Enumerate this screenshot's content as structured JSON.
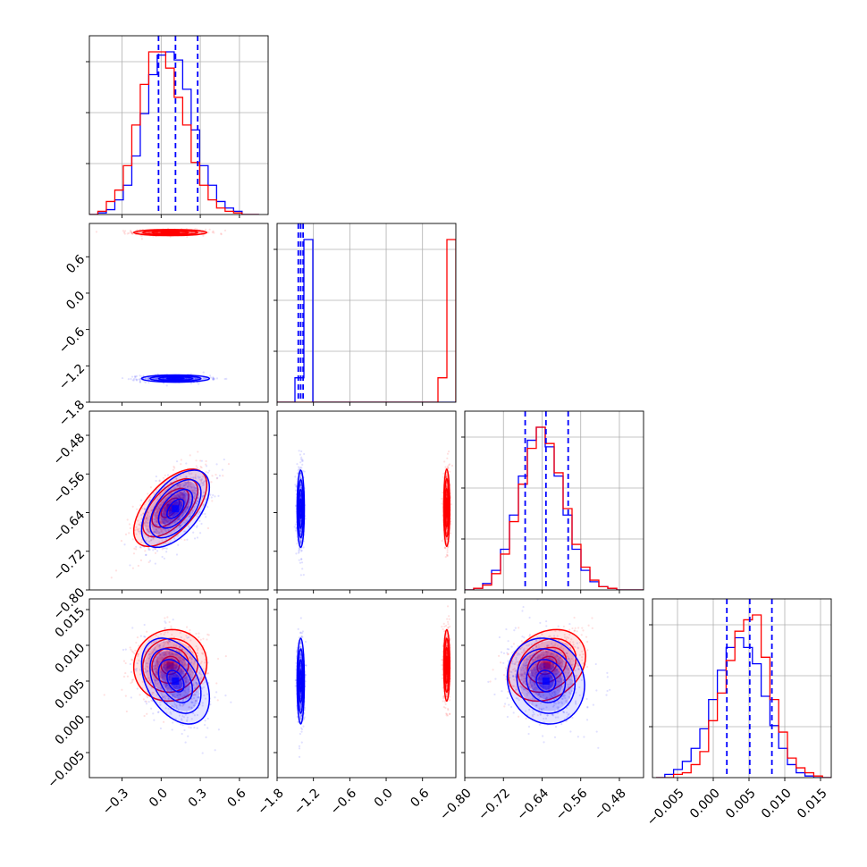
{
  "chart_data": {
    "type": "corner",
    "colors": {
      "series_a": "#ff0000",
      "series_b": "#0000ff",
      "quantile_line": "#0000ff"
    },
    "grid": true,
    "parameters": [
      {
        "range": [
          -0.55,
          0.82
        ],
        "ticks": [
          -0.3,
          0.0,
          0.3,
          0.6
        ],
        "tick_labels": [
          "−0.3",
          "0.0",
          "0.3",
          "0.6"
        ]
      },
      {
        "range": [
          -1.8,
          1.15
        ],
        "ticks": [
          -1.8,
          -1.2,
          -0.6,
          0.0,
          0.6
        ],
        "tick_labels": [
          "−1.8",
          "−1.2",
          "−0.6",
          "0.0",
          "0.6"
        ]
      },
      {
        "range": [
          -0.8,
          -0.43
        ],
        "ticks": [
          -0.8,
          -0.72,
          -0.64,
          -0.56,
          -0.48
        ],
        "tick_labels": [
          "−0.80",
          "−0.72",
          "−0.64",
          "−0.56",
          "−0.48"
        ]
      },
      {
        "range": [
          -0.0085,
          0.0165
        ],
        "ticks": [
          -0.005,
          0.0,
          0.005,
          0.01,
          0.015
        ],
        "tick_labels": [
          "−0.005",
          "0.000",
          "0.005",
          "0.010",
          "0.015"
        ]
      }
    ],
    "quantiles": [
      [
        -0.02,
        0.11,
        0.28
      ],
      [
        -1.45,
        -1.41,
        -1.37
      ],
      [
        -0.675,
        -0.632,
        -0.586
      ],
      [
        0.0019,
        0.0051,
        0.0082
      ]
    ],
    "series": [
      {
        "color": "#ff0000",
        "mean": [
          0.07,
          1.0,
          -0.63,
          0.0072
        ],
        "sd": [
          0.14,
          0.025,
          0.04,
          0.0025
        ],
        "corr": {
          "0-2": 0.6,
          "0-3": 0.05,
          "2-3": 0.25
        }
      },
      {
        "color": "#0000ff",
        "mean": [
          0.11,
          -1.41,
          -0.632,
          0.005
        ],
        "sd": [
          0.13,
          0.03,
          0.04,
          0.003
        ],
        "corr": {
          "0-2": 0.55,
          "0-3": -0.4,
          "2-3": -0.1
        }
      }
    ],
    "histograms": [
      {
        "bins": [
          -0.55,
          0.75,
          20
        ],
        "red": [
          0,
          2,
          8,
          15,
          30,
          55,
          80,
          100,
          100,
          90,
          72,
          55,
          32,
          18,
          9,
          4,
          2,
          1,
          0,
          0
        ],
        "blue": [
          0,
          1,
          3,
          9,
          18,
          36,
          62,
          86,
          98,
          100,
          95,
          77,
          52,
          30,
          18,
          8,
          4,
          2,
          0,
          0
        ]
      },
      {
        "bins": [
          -1.8,
          1.15,
          20
        ],
        "red": [
          0,
          0,
          0,
          0,
          0,
          0,
          0,
          0,
          0,
          0,
          0,
          0,
          0,
          0,
          0,
          0,
          0,
          0,
          15,
          100
        ],
        "blue": [
          0,
          0,
          15,
          100,
          0,
          0,
          0,
          0,
          0,
          0,
          0,
          0,
          0,
          0,
          0,
          0,
          0,
          0,
          0,
          0
        ]
      },
      {
        "bins": [
          -0.8,
          -0.43,
          20
        ],
        "red": [
          0,
          1,
          3,
          10,
          22,
          42,
          65,
          87,
          100,
          90,
          72,
          50,
          28,
          14,
          6,
          2,
          1,
          0,
          0,
          0
        ],
        "blue": [
          0,
          1,
          4,
          12,
          25,
          46,
          70,
          92,
          100,
          88,
          70,
          46,
          25,
          12,
          5,
          2,
          1,
          0,
          0,
          0
        ]
      },
      {
        "bins": [
          -0.008,
          0.0165,
          20
        ],
        "red": [
          0,
          0,
          2,
          3,
          8,
          16,
          35,
          52,
          72,
          90,
          97,
          100,
          74,
          48,
          28,
          12,
          6,
          3,
          1,
          0
        ],
        "blue": [
          0,
          2,
          5,
          10,
          18,
          30,
          48,
          66,
          80,
          86,
          80,
          70,
          50,
          32,
          18,
          8,
          3,
          1,
          0,
          0
        ]
      }
    ]
  }
}
